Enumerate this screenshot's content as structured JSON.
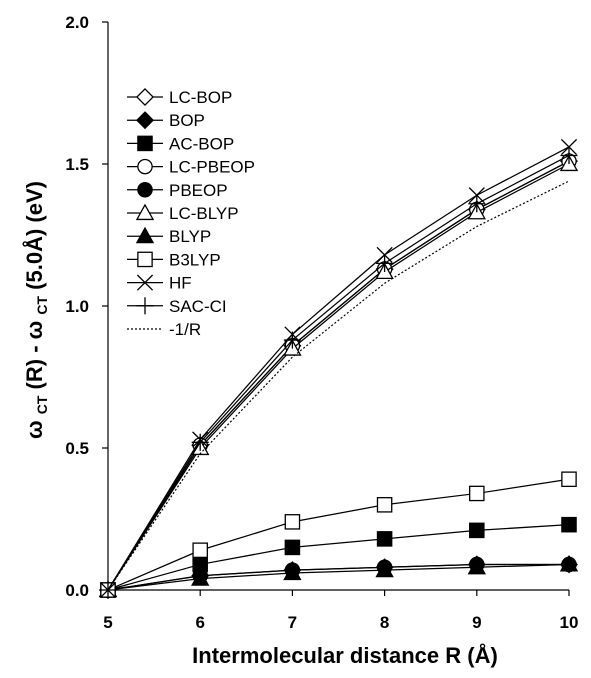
{
  "chart_data": {
    "type": "line",
    "title": "",
    "xlabel": "Intermolecular distance R (Å)",
    "ylabel": {
      "base": "ω",
      "sub1": "CT",
      "mid": "(R) - ω",
      "sub2": "CT",
      "tail": "(5.0Å) (eV)"
    },
    "xlim": [
      5,
      10
    ],
    "ylim": [
      0.0,
      2.0
    ],
    "xticks": [
      "5",
      "6",
      "7",
      "8",
      "9",
      "10"
    ],
    "yticks": [
      "0.0",
      "0.5",
      "1.0",
      "1.5",
      "2.0"
    ],
    "grid": false,
    "legend_position": "upper-left",
    "x": [
      5,
      6,
      7,
      8,
      9,
      10
    ],
    "series": [
      {
        "name": "LC-BOP",
        "marker": "diamond-open",
        "line": "solid",
        "values": [
          0.0,
          0.51,
          0.86,
          1.13,
          1.34,
          1.51
        ]
      },
      {
        "name": "BOP",
        "marker": "diamond-filled",
        "line": "solid",
        "values": [
          0.0,
          0.05,
          0.07,
          0.08,
          0.09,
          0.09
        ]
      },
      {
        "name": "AC-BOP",
        "marker": "square-filled",
        "line": "solid",
        "values": [
          0.0,
          0.09,
          0.15,
          0.18,
          0.21,
          0.23
        ]
      },
      {
        "name": "LC-PBEOP",
        "marker": "circle-open",
        "line": "solid",
        "values": [
          0.0,
          0.51,
          0.86,
          1.13,
          1.34,
          1.51
        ]
      },
      {
        "name": "PBEOP",
        "marker": "circle-filled",
        "line": "solid",
        "values": [
          0.0,
          0.05,
          0.07,
          0.08,
          0.09,
          0.09
        ]
      },
      {
        "name": "LC-BLYP",
        "marker": "triangle-open",
        "line": "solid",
        "values": [
          0.0,
          0.5,
          0.85,
          1.12,
          1.33,
          1.5
        ]
      },
      {
        "name": "BLYP",
        "marker": "triangle-filled",
        "line": "solid",
        "values": [
          0.0,
          0.04,
          0.06,
          0.07,
          0.08,
          0.09
        ]
      },
      {
        "name": "B3LYP",
        "marker": "square-open",
        "line": "solid",
        "values": [
          0.0,
          0.14,
          0.24,
          0.3,
          0.34,
          0.39
        ]
      },
      {
        "name": "HF",
        "marker": "x",
        "line": "solid",
        "values": [
          0.0,
          0.53,
          0.9,
          1.18,
          1.39,
          1.56
        ]
      },
      {
        "name": "SAC-CI",
        "marker": "plus",
        "line": "solid",
        "values": [
          0.0,
          0.52,
          0.88,
          1.15,
          1.36,
          1.53
        ]
      },
      {
        "name": "-1/R",
        "marker": "none",
        "line": "dotted",
        "values": [
          0.0,
          0.48,
          0.82,
          1.08,
          1.28,
          1.44
        ]
      }
    ]
  }
}
